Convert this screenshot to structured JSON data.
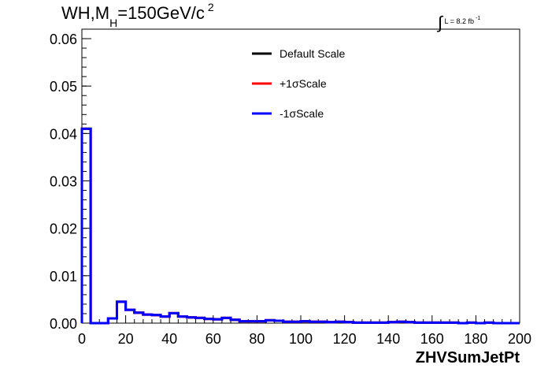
{
  "header": {
    "title_main": "WH,M",
    "title_sub": "H",
    "title_rest": "=150GeV/c",
    "title_sup": "2",
    "lumi_symbol": "∫",
    "lumi_text": "L = 8.2 fb",
    "lumi_sup": "-1"
  },
  "chart_data": {
    "type": "line",
    "xlabel": "ZHVSumJetPt",
    "ylabel": "",
    "xlim": [
      0,
      200
    ],
    "ylim": [
      0,
      0.062
    ],
    "x_ticks": [
      "0",
      "20",
      "40",
      "60",
      "80",
      "100",
      "120",
      "140",
      "160",
      "180",
      "200"
    ],
    "y_ticks": [
      "0.00",
      "0.01",
      "0.02",
      "0.03",
      "0.04",
      "0.05",
      "0.06"
    ],
    "legend": {
      "placement": "top-center",
      "entries": [
        "Default Scale",
        "+1σScale",
        "-1σScale"
      ]
    },
    "bin_edges": [
      0,
      4,
      8,
      12,
      16,
      20,
      24,
      28,
      32,
      36,
      40,
      44,
      48,
      52,
      56,
      60,
      64,
      68,
      72,
      76,
      80,
      84,
      88,
      92,
      96,
      100,
      104,
      108,
      112,
      116,
      120,
      124,
      128,
      132,
      136,
      140,
      144,
      148,
      152,
      156,
      160,
      164,
      168,
      172,
      176,
      180,
      184,
      188,
      192,
      196,
      200
    ],
    "series": [
      {
        "name": "Default Scale",
        "color": "#000000",
        "values": [
          0.041,
          0.0,
          0.0,
          0.001,
          0.0045,
          0.0028,
          0.0022,
          0.0018,
          0.0017,
          0.0014,
          0.0021,
          0.0014,
          0.0012,
          0.0011,
          0.0009,
          0.0008,
          0.0011,
          0.0007,
          0.0004,
          0.0004,
          0.0004,
          0.0006,
          0.0005,
          0.0003,
          0.0003,
          0.0004,
          0.0003,
          0.0003,
          0.0002,
          0.0003,
          0.0002,
          0.0001,
          0.0001,
          0.0001,
          0.0001,
          0.0002,
          0.0003,
          0.0002,
          0.0001,
          0.0001,
          0.0001,
          0.0001,
          0.0001,
          0.0,
          0.0001,
          0.0,
          0.0001,
          0.0,
          0.0,
          0.0
        ]
      },
      {
        "name": "+1σScale",
        "color": "#ff0000",
        "values": [
          0.041,
          0.0,
          0.0,
          0.001,
          0.0045,
          0.0028,
          0.0022,
          0.0018,
          0.0017,
          0.0014,
          0.0021,
          0.0014,
          0.0012,
          0.0011,
          0.0009,
          0.0008,
          0.0011,
          0.0007,
          0.0004,
          0.0004,
          0.0004,
          0.0006,
          0.0005,
          0.0003,
          0.0003,
          0.0004,
          0.0003,
          0.0003,
          0.0002,
          0.0003,
          0.0002,
          0.0001,
          0.0001,
          0.0001,
          0.0001,
          0.0002,
          0.0003,
          0.0002,
          0.0001,
          0.0001,
          0.0001,
          0.0001,
          0.0001,
          0.0,
          0.0001,
          0.0,
          0.0001,
          0.0,
          0.0,
          0.0
        ]
      },
      {
        "name": "-1σScale",
        "color": "#0000ff",
        "values": [
          0.041,
          0.0,
          0.0,
          0.001,
          0.0045,
          0.0028,
          0.0022,
          0.0018,
          0.0017,
          0.0014,
          0.0021,
          0.0014,
          0.0012,
          0.0011,
          0.0009,
          0.0008,
          0.0011,
          0.0007,
          0.0004,
          0.0004,
          0.0004,
          0.0006,
          0.0005,
          0.0003,
          0.0003,
          0.0004,
          0.0003,
          0.0003,
          0.0002,
          0.0003,
          0.0002,
          0.0001,
          0.0001,
          0.0001,
          0.0001,
          0.0002,
          0.0003,
          0.0002,
          0.0001,
          0.0001,
          0.0001,
          0.0001,
          0.0001,
          0.0,
          0.0001,
          0.0,
          0.0001,
          0.0,
          0.0,
          0.0
        ]
      }
    ]
  }
}
